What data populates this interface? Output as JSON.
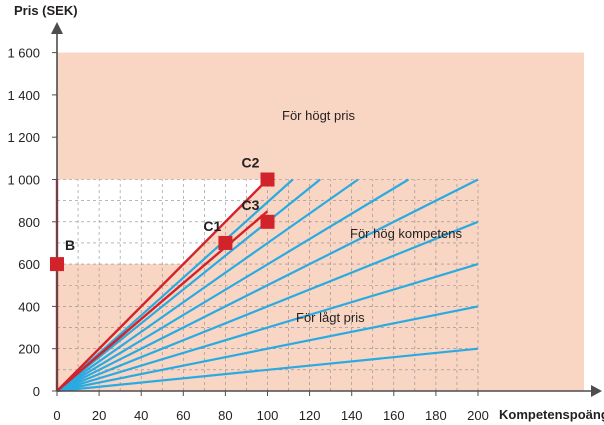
{
  "chart_data": {
    "type": "line",
    "xlabel": "Kompetenspoäng",
    "ylabel": "Pris (SEK)",
    "xlim": [
      0,
      200
    ],
    "ylim": [
      0,
      1600
    ],
    "x_ticks": [
      0,
      20,
      40,
      60,
      80,
      100,
      120,
      140,
      160,
      180,
      200
    ],
    "y_ticks": [
      0,
      200,
      400,
      600,
      800,
      1000,
      1200,
      1400,
      1600
    ],
    "x_tick_labels": [
      "0",
      "20",
      "40",
      "60",
      "80",
      "100",
      "120",
      "140",
      "160",
      "180",
      "200"
    ],
    "y_tick_labels": [
      "0",
      "200",
      "400",
      "600",
      "800",
      "1 000",
      "1 200",
      "1 400",
      "1 600"
    ],
    "grid": true,
    "regions": [
      {
        "label": "För högt pris",
        "color": "#f9d5c4"
      },
      {
        "label": "För hög kompetens",
        "color": "#f9d5c4"
      },
      {
        "label": "För lågt pris",
        "color": "#f9d5c4"
      }
    ],
    "blue_lines": [
      {
        "end": [
          112,
          1000
        ]
      },
      {
        "end": [
          125,
          1000
        ]
      },
      {
        "end": [
          143,
          1000
        ]
      },
      {
        "end": [
          167,
          1000
        ]
      },
      {
        "end": [
          200,
          1000
        ]
      },
      {
        "end": [
          200,
          800
        ]
      },
      {
        "end": [
          200,
          600
        ]
      },
      {
        "end": [
          200,
          400
        ]
      },
      {
        "end": [
          200,
          200
        ]
      }
    ],
    "red_lines": [
      {
        "points": [
          [
            0,
            0
          ],
          [
            0,
            1000
          ]
        ]
      },
      {
        "points": [
          [
            0,
            0
          ],
          [
            100,
            1000
          ]
        ]
      },
      {
        "points": [
          [
            0,
            0
          ],
          [
            100,
            850
          ]
        ]
      }
    ],
    "points": [
      {
        "label": "B",
        "x": 0,
        "y": 600
      },
      {
        "label": "C1",
        "x": 80,
        "y": 700
      },
      {
        "label": "C2",
        "x": 100,
        "y": 1000
      },
      {
        "label": "C3",
        "x": 100,
        "y": 800
      }
    ],
    "colors": {
      "blue": "#29abe2",
      "red": "#d2232a",
      "region": "#f9d5c4",
      "axis": "#4d4d4f"
    }
  }
}
